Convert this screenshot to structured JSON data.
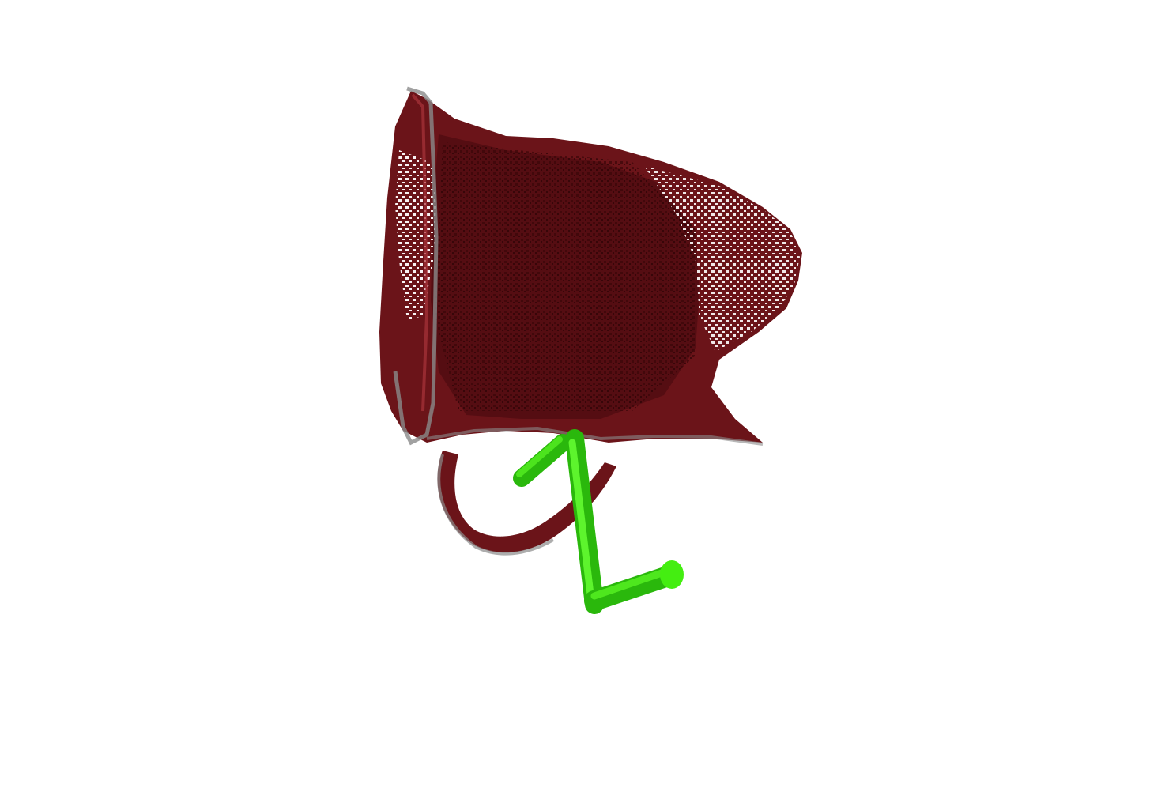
{
  "scene": {
    "background_color": "#ffffff",
    "object_color": "#6b1419",
    "object_dark_color": "#3a0608",
    "object_edge_color": "#8a8a8a",
    "gripper_color": "#33dd11",
    "gripper_highlight_color": "#7cff4a",
    "gripper_shadow_color": "#1f8f0a"
  }
}
